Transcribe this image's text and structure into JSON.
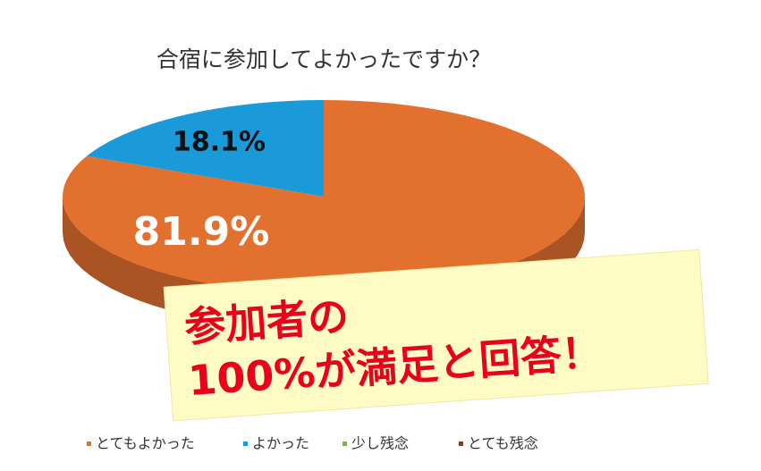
{
  "chart_data": {
    "type": "pie3d",
    "title": "合宿に参加してよかったですか？",
    "categories": [
      "とてもよかった",
      "よかった",
      "少し残念",
      "とても残念"
    ],
    "values": [
      81.9,
      18.1,
      0,
      0
    ],
    "value_labels": [
      "81.9%",
      "18.1%",
      null,
      null
    ],
    "colors": [
      "#e2702f",
      "#1a9ad8",
      "#7cb545",
      "#8a3b12"
    ],
    "legend": "bottom",
    "annotation": [
      "参加者の",
      "100%が満足と回答！"
    ]
  }
}
